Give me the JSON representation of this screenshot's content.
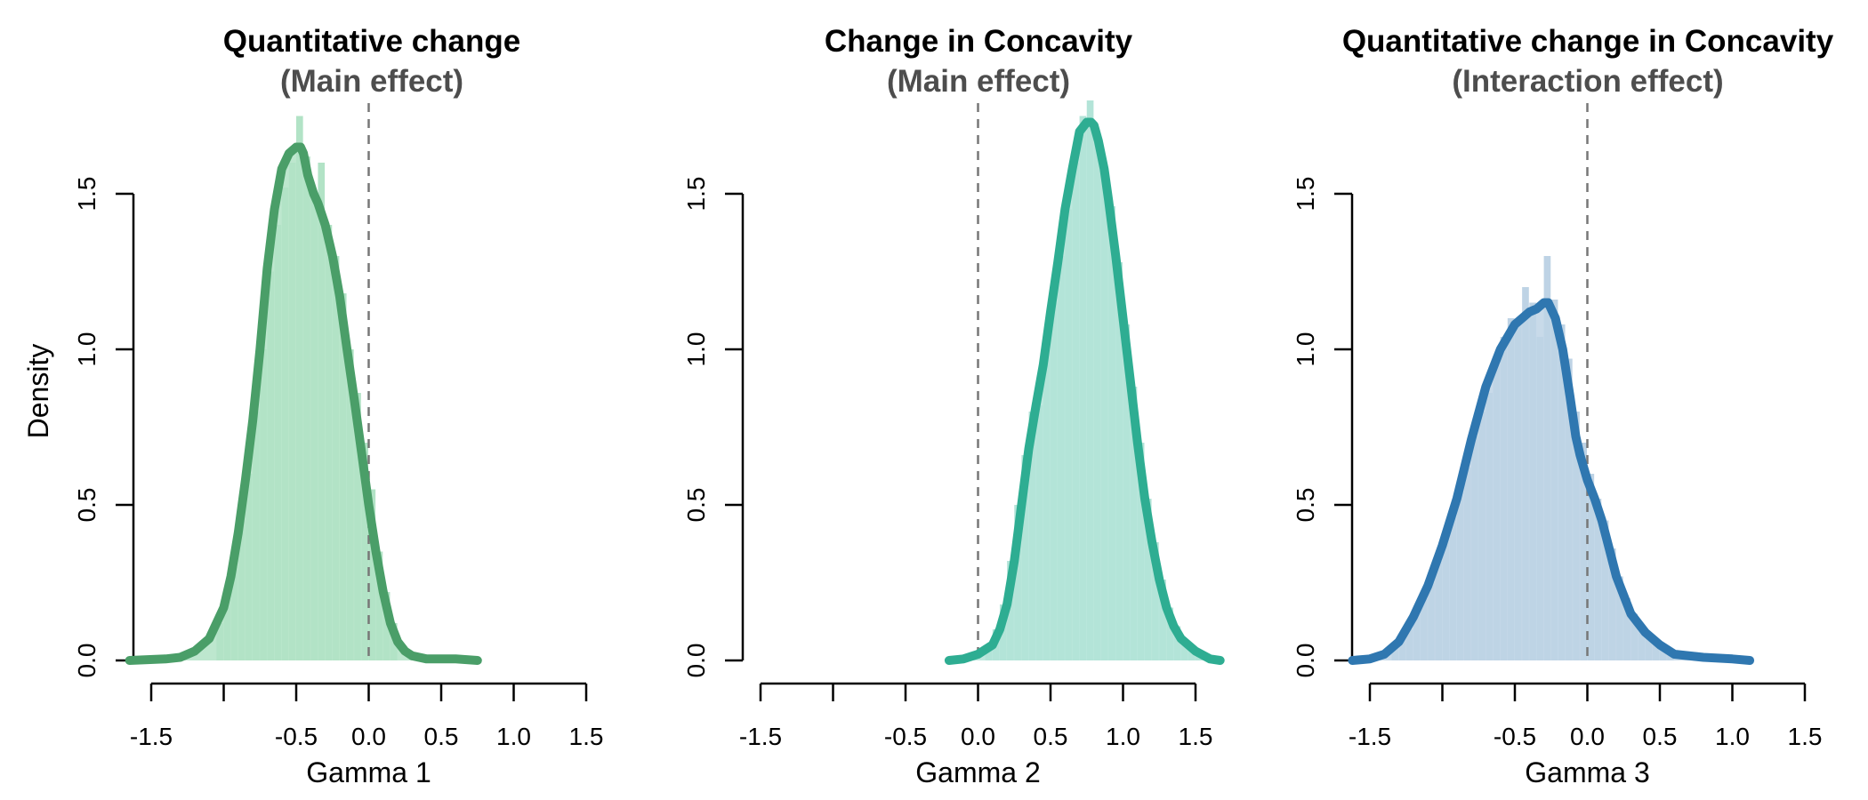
{
  "chart_data": [
    {
      "type": "area",
      "title": "Quantitative change",
      "subtitle": "(Main effect)",
      "xlabel": "Gamma 1",
      "ylabel": "Density",
      "xlim": [
        -1.5,
        1.5
      ],
      "ylim": [
        0,
        1.5
      ],
      "x_ticks": [
        -1.5,
        -1.0,
        -0.5,
        0.0,
        0.5,
        1.0,
        1.5
      ],
      "x_tick_labels": [
        "-1.5",
        "",
        "-0.5",
        "0.0",
        "0.5",
        "1.0",
        "1.5"
      ],
      "y_ticks": [
        0.0,
        0.5,
        1.0,
        1.5
      ],
      "y_tick_labels": [
        "0.0",
        "0.5",
        "1.0",
        "1.5"
      ],
      "reference_line_x": 0.0,
      "fill_color": "#b2e3c6",
      "line_color": "#4a9e68",
      "density": {
        "x": [
          -1.65,
          -1.4,
          -1.3,
          -1.2,
          -1.1,
          -1.0,
          -0.95,
          -0.9,
          -0.85,
          -0.8,
          -0.75,
          -0.7,
          -0.65,
          -0.6,
          -0.55,
          -0.5,
          -0.47,
          -0.45,
          -0.42,
          -0.38,
          -0.35,
          -0.3,
          -0.25,
          -0.2,
          -0.15,
          -0.1,
          -0.05,
          0.0,
          0.05,
          0.1,
          0.15,
          0.2,
          0.25,
          0.3,
          0.4,
          0.5,
          0.6,
          0.75
        ],
        "y": [
          0.0,
          0.005,
          0.01,
          0.03,
          0.07,
          0.17,
          0.27,
          0.41,
          0.58,
          0.77,
          1.0,
          1.26,
          1.45,
          1.58,
          1.63,
          1.65,
          1.65,
          1.63,
          1.56,
          1.5,
          1.47,
          1.4,
          1.3,
          1.17,
          1.0,
          0.84,
          0.67,
          0.5,
          0.35,
          0.22,
          0.12,
          0.06,
          0.03,
          0.015,
          0.005,
          0.005,
          0.005,
          0.0
        ]
      },
      "histogram": {
        "bin_width": 0.05,
        "bin_starts": [
          -1.05,
          -1.0,
          -0.95,
          -0.9,
          -0.85,
          -0.8,
          -0.75,
          -0.7,
          -0.65,
          -0.6,
          -0.55,
          -0.5,
          -0.45,
          -0.4,
          -0.35,
          -0.3,
          -0.25,
          -0.2,
          -0.15,
          -0.1,
          -0.05,
          0.0,
          0.05,
          0.1,
          0.15
        ],
        "density": [
          0.12,
          0.2,
          0.3,
          0.45,
          0.6,
          0.8,
          1.0,
          1.25,
          1.4,
          1.52,
          1.6,
          1.75,
          1.62,
          1.5,
          1.6,
          1.4,
          1.3,
          1.18,
          1.0,
          0.86,
          0.7,
          0.55,
          0.35,
          0.22,
          0.12
        ]
      }
    },
    {
      "type": "area",
      "title": "Change in Concavity",
      "subtitle": "(Main effect)",
      "xlabel": "Gamma 2",
      "ylabel": "",
      "xlim": [
        -1.5,
        1.5
      ],
      "ylim": [
        0,
        1.5
      ],
      "x_ticks": [
        -1.5,
        -1.0,
        -0.5,
        0.0,
        0.5,
        1.0,
        1.5
      ],
      "x_tick_labels": [
        "-1.5",
        "",
        "-0.5",
        "0.0",
        "0.5",
        "1.0",
        "1.5"
      ],
      "y_ticks": [
        0.0,
        0.5,
        1.0,
        1.5
      ],
      "y_tick_labels": [
        "0.0",
        "0.5",
        "1.0",
        "1.5"
      ],
      "reference_line_x": 0.0,
      "fill_color": "#b3e4d8",
      "line_color": "#2ead92",
      "density": {
        "x": [
          -0.2,
          -0.1,
          0.0,
          0.1,
          0.15,
          0.2,
          0.25,
          0.3,
          0.35,
          0.4,
          0.45,
          0.5,
          0.55,
          0.6,
          0.65,
          0.7,
          0.75,
          0.78,
          0.8,
          0.83,
          0.87,
          0.9,
          0.95,
          1.0,
          1.05,
          1.1,
          1.15,
          1.2,
          1.25,
          1.3,
          1.35,
          1.4,
          1.5,
          1.6,
          1.67
        ],
        "y": [
          0.0,
          0.005,
          0.02,
          0.05,
          0.1,
          0.18,
          0.32,
          0.5,
          0.68,
          0.82,
          0.95,
          1.12,
          1.28,
          1.45,
          1.58,
          1.7,
          1.73,
          1.73,
          1.72,
          1.67,
          1.58,
          1.48,
          1.3,
          1.1,
          0.9,
          0.7,
          0.52,
          0.38,
          0.26,
          0.17,
          0.11,
          0.07,
          0.03,
          0.005,
          0.0
        ]
      },
      "histogram": {
        "bin_width": 0.05,
        "bin_starts": [
          0.05,
          0.1,
          0.15,
          0.2,
          0.25,
          0.3,
          0.35,
          0.4,
          0.45,
          0.5,
          0.55,
          0.6,
          0.65,
          0.7,
          0.75,
          0.8,
          0.85,
          0.9,
          0.95,
          1.0,
          1.05,
          1.1,
          1.15,
          1.2,
          1.25,
          1.3,
          1.35,
          1.4,
          1.45,
          1.5,
          1.55,
          1.6
        ],
        "density": [
          0.05,
          0.1,
          0.18,
          0.32,
          0.5,
          0.66,
          0.8,
          0.82,
          1.0,
          1.15,
          1.3,
          1.45,
          1.6,
          1.75,
          1.8,
          1.68,
          1.58,
          1.46,
          1.28,
          1.08,
          0.88,
          0.7,
          0.52,
          0.38,
          0.26,
          0.17,
          0.11,
          0.07,
          0.04,
          0.02,
          0.01,
          0.005
        ]
      }
    },
    {
      "type": "area",
      "title": "Quantitative change in Concavity",
      "subtitle": "(Interaction effect)",
      "xlabel": "Gamma 3",
      "ylabel": "",
      "xlim": [
        -1.5,
        1.5
      ],
      "ylim": [
        0,
        1.5
      ],
      "x_ticks": [
        -1.5,
        -1.0,
        -0.5,
        0.0,
        0.5,
        1.0,
        1.5
      ],
      "x_tick_labels": [
        "-1.5",
        "",
        "-0.5",
        "0.0",
        "0.5",
        "1.0",
        "1.5"
      ],
      "y_ticks": [
        0.0,
        0.5,
        1.0,
        1.5
      ],
      "y_tick_labels": [
        "0.0",
        "0.5",
        "1.0",
        "1.5"
      ],
      "reference_line_x": 0.0,
      "fill_color": "#bed3e5",
      "line_color": "#2f77b0",
      "density": {
        "x": [
          -1.62,
          -1.5,
          -1.4,
          -1.3,
          -1.2,
          -1.1,
          -1.0,
          -0.9,
          -0.8,
          -0.7,
          -0.6,
          -0.5,
          -0.45,
          -0.4,
          -0.35,
          -0.3,
          -0.27,
          -0.22,
          -0.17,
          -0.12,
          -0.08,
          -0.05,
          0.0,
          0.05,
          0.1,
          0.15,
          0.2,
          0.3,
          0.4,
          0.5,
          0.6,
          0.8,
          1.0,
          1.12
        ],
        "y": [
          0.0,
          0.005,
          0.02,
          0.06,
          0.14,
          0.24,
          0.37,
          0.52,
          0.71,
          0.88,
          1.0,
          1.08,
          1.1,
          1.12,
          1.13,
          1.15,
          1.15,
          1.1,
          1.0,
          0.85,
          0.72,
          0.66,
          0.58,
          0.52,
          0.45,
          0.36,
          0.27,
          0.15,
          0.09,
          0.05,
          0.02,
          0.01,
          0.005,
          0.0
        ]
      },
      "histogram": {
        "bin_width": 0.05,
        "bin_starts": [
          -1.35,
          -1.3,
          -1.25,
          -1.2,
          -1.15,
          -1.1,
          -1.05,
          -1.0,
          -0.95,
          -0.9,
          -0.85,
          -0.8,
          -0.75,
          -0.7,
          -0.65,
          -0.6,
          -0.55,
          -0.5,
          -0.45,
          -0.4,
          -0.35,
          -0.3,
          -0.25,
          -0.2,
          -0.15,
          -0.1,
          -0.05,
          0.0,
          0.05,
          0.1,
          0.15,
          0.2,
          0.25,
          0.3,
          0.35,
          0.4,
          0.45,
          0.5,
          0.55
        ],
        "density": [
          0.04,
          0.07,
          0.1,
          0.15,
          0.2,
          0.25,
          0.32,
          0.4,
          0.46,
          0.54,
          0.62,
          0.72,
          0.8,
          0.86,
          0.95,
          1.04,
          1.1,
          1.08,
          1.2,
          1.15,
          1.04,
          1.3,
          1.16,
          1.08,
          0.97,
          0.8,
          0.7,
          0.6,
          0.52,
          0.45,
          0.36,
          0.27,
          0.2,
          0.15,
          0.11,
          0.08,
          0.06,
          0.04,
          0.02
        ]
      }
    }
  ]
}
